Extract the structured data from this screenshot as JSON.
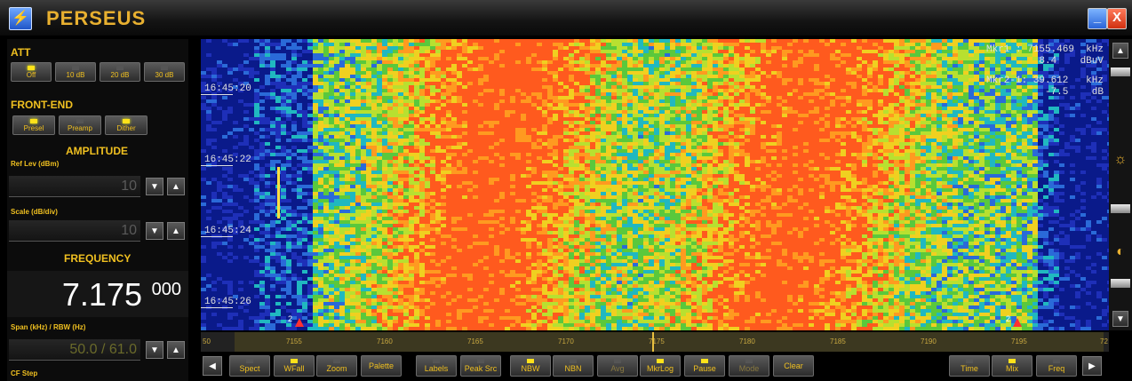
{
  "window": {
    "title": "PERSEUS",
    "minimize": "_",
    "close": "X"
  },
  "att": {
    "title": "ATT",
    "buttons": [
      {
        "label": "Off",
        "on": true
      },
      {
        "label": "10 dB",
        "on": false
      },
      {
        "label": "20 dB",
        "on": false
      },
      {
        "label": "30 dB",
        "on": false
      }
    ]
  },
  "frontend": {
    "title": "FRONT-END",
    "buttons": [
      {
        "label": "Presel",
        "on": true
      },
      {
        "label": "Preamp",
        "on": false
      },
      {
        "label": "Dither",
        "on": true
      }
    ]
  },
  "amplitude": {
    "title": "AMPLITUDE",
    "ref_label": "Ref Lev (dBm)",
    "ref_value": "10",
    "scale_label": "Scale (dB/div)",
    "scale_value": "10"
  },
  "frequency": {
    "title": "FREQUENCY",
    "main": "7.175",
    "sub": "000",
    "span_label": "Span (kHz) / RBW (Hz)",
    "span_value": "50.0 / 61.0",
    "cf_step_label": "CF Step"
  },
  "waterfall": {
    "times": [
      "16:45:20",
      "16:45:22",
      "16:45:24",
      "16:45:26"
    ],
    "marker1_freq": "Mkr1 : 7155.469  kHz",
    "marker1_level": "8.4    dBuV",
    "marker2_freq": "Mkr2-1: 39.612   kHz",
    "marker2_level": "-7.5    dB",
    "marker_labels": [
      "2",
      "2"
    ],
    "colors": {
      "low": "#1e2fb8",
      "mid": "#5ac83c",
      "high": "#ff5a1e"
    }
  },
  "axis": {
    "ticks": [
      "7155",
      "7160",
      "7165",
      "7170",
      "7175",
      "7180",
      "7185",
      "7190",
      "7195"
    ],
    "left_cut": "50",
    "right_cut": "72"
  },
  "bottom": {
    "buttons": [
      {
        "label": "Spect",
        "on": false,
        "dim": false
      },
      {
        "label": "WFall",
        "on": true,
        "dim": false
      },
      {
        "label": "Zoom",
        "on": false,
        "dim": false
      },
      {
        "label": "Palette",
        "on": false,
        "dim": false
      },
      {
        "label": "Labels",
        "on": false,
        "dim": false
      },
      {
        "label": "Peak Src",
        "on": false,
        "dim": false
      },
      {
        "label": "NBW",
        "on": true,
        "dim": false
      },
      {
        "label": "NBN",
        "on": false,
        "dim": false
      },
      {
        "label": "Avg",
        "on": false,
        "dim": true
      },
      {
        "label": "MkrLog",
        "on": true,
        "dim": false
      },
      {
        "label": "Pause",
        "on": true,
        "dim": false
      },
      {
        "label": "Mode",
        "on": false,
        "dim": true
      },
      {
        "label": "Clear",
        "on": false,
        "dim": false
      },
      {
        "label": "Time",
        "on": false,
        "dim": false
      },
      {
        "label": "Mix",
        "on": true,
        "dim": false
      },
      {
        "label": "Freq",
        "on": false,
        "dim": false
      }
    ]
  }
}
